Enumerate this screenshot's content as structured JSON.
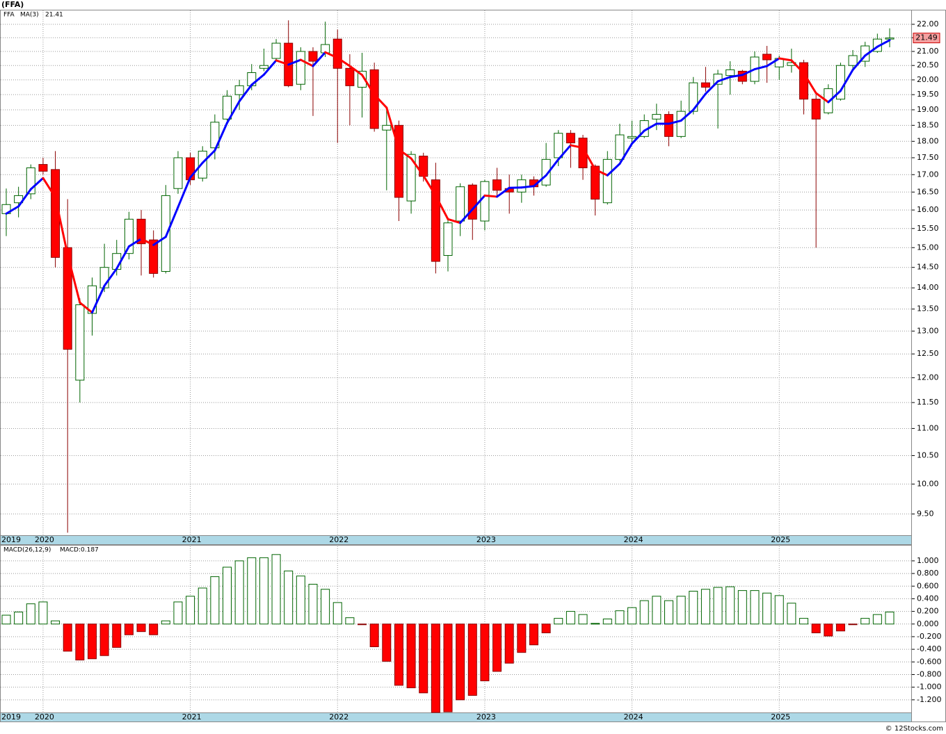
{
  "chart_data": [
    {
      "type": "candlestick",
      "title": "(FFA)",
      "log_scale": true,
      "grid": true,
      "categories": [
        "2019",
        null,
        null,
        "2020",
        null,
        null,
        null,
        null,
        null,
        null,
        null,
        null,
        null,
        null,
        null,
        "2021",
        null,
        null,
        null,
        null,
        null,
        null,
        null,
        null,
        null,
        null,
        null,
        "2022",
        null,
        null,
        null,
        null,
        null,
        null,
        null,
        null,
        null,
        null,
        null,
        "2023",
        null,
        null,
        null,
        null,
        null,
        null,
        null,
        null,
        null,
        null,
        null,
        "2024",
        null,
        null,
        null,
        null,
        null,
        null,
        null,
        null,
        null,
        null,
        null,
        "2025",
        null,
        null,
        null,
        null,
        null,
        null,
        null,
        null,
        null
      ],
      "ylim": [
        9.16,
        22.53
      ],
      "yticks": [
        {
          "value": 9.5,
          "label": "9.50"
        },
        {
          "value": 10,
          "label": "10.00"
        },
        {
          "value": 10.5,
          "label": "10.50"
        },
        {
          "value": 11,
          "label": "11.00"
        },
        {
          "value": 11.5,
          "label": "11.50"
        },
        {
          "value": 12,
          "label": "12.00"
        },
        {
          "value": 12.5,
          "label": "12.50"
        },
        {
          "value": 13,
          "label": "13.00"
        },
        {
          "value": 13.5,
          "label": "13.50"
        },
        {
          "value": 14,
          "label": "14.00"
        },
        {
          "value": 14.5,
          "label": "14.50"
        },
        {
          "value": 15,
          "label": "15.00"
        },
        {
          "value": 15.5,
          "label": "15.50"
        },
        {
          "value": 16,
          "label": "16.00"
        },
        {
          "value": 16.5,
          "label": "16.50"
        },
        {
          "value": 17,
          "label": "17.00"
        },
        {
          "value": 17.5,
          "label": "17.50"
        },
        {
          "value": 18,
          "label": "18.00"
        },
        {
          "value": 18.5,
          "label": "18.50"
        },
        {
          "value": 19,
          "label": "19.00"
        },
        {
          "value": 19.5,
          "label": "19.50"
        },
        {
          "value": 20,
          "label": "20.00"
        },
        {
          "value": 20.5,
          "label": "20.50"
        },
        {
          "value": 21,
          "label": "21.00"
        },
        {
          "value": 21.5,
          "label": "21.50"
        },
        {
          "value": 22,
          "label": "22.00"
        }
      ],
      "series": [
        {
          "name": "FFA",
          "color": "#006400",
          "down_color": "#ff0000",
          "open": [
            15.9,
            16.2,
            16.45,
            17.3,
            17.15,
            15.0,
            11.95,
            13.4,
            14.0,
            14.45,
            14.85,
            15.75,
            15.2,
            14.4,
            16.6,
            17.5,
            16.9,
            17.8,
            18.7,
            19.5,
            19.8,
            20.4,
            20.75,
            21.3,
            19.85,
            21.0,
            20.95,
            21.45,
            20.4,
            19.75,
            20.35,
            18.35,
            18.5,
            16.25,
            17.55,
            16.85,
            14.8,
            15.7,
            16.7,
            15.7,
            16.85,
            16.6,
            16.5,
            16.85,
            16.7,
            17.5,
            18.25,
            18.1,
            17.25,
            16.2,
            17.45,
            18.1,
            18.15,
            18.7,
            18.85,
            18.15,
            18.95,
            19.9,
            19.85,
            20.15,
            20.3,
            19.95,
            20.9,
            20.45,
            20.5,
            20.6,
            19.35,
            18.9,
            19.35,
            20.5,
            20.65,
            21.0,
            21.45
          ],
          "high": [
            16.6,
            16.65,
            17.3,
            17.5,
            17.7,
            16.3,
            13.75,
            14.25,
            15.1,
            15.2,
            15.95,
            16.0,
            15.45,
            16.7,
            17.7,
            17.65,
            17.85,
            18.85,
            19.65,
            20.0,
            20.55,
            21.1,
            21.45,
            22.15,
            21.15,
            21.15,
            22.1,
            21.8,
            20.9,
            20.95,
            20.6,
            19.05,
            18.65,
            17.7,
            17.65,
            17.35,
            15.8,
            16.75,
            16.75,
            16.85,
            17.2,
            17.0,
            17.0,
            16.95,
            17.95,
            18.35,
            18.35,
            18.2,
            17.3,
            17.7,
            18.55,
            18.65,
            18.85,
            19.2,
            18.95,
            19.3,
            20.1,
            20.45,
            20.35,
            20.65,
            20.35,
            21.0,
            21.2,
            20.85,
            21.1,
            20.7,
            19.5,
            19.85,
            20.6,
            21.05,
            21.35,
            21.65,
            21.85
          ],
          "low": [
            15.3,
            15.8,
            16.3,
            17.0,
            14.5,
            9.2,
            11.5,
            12.9,
            13.9,
            14.3,
            14.7,
            14.3,
            14.25,
            14.35,
            16.45,
            16.7,
            16.8,
            17.45,
            18.65,
            19.0,
            19.65,
            20.3,
            20.7,
            19.75,
            19.65,
            18.8,
            20.8,
            17.95,
            18.5,
            18.75,
            18.3,
            16.55,
            15.7,
            15.9,
            16.8,
            14.35,
            14.4,
            15.3,
            15.2,
            15.45,
            16.35,
            15.9,
            16.2,
            16.4,
            16.65,
            17.25,
            17.2,
            16.85,
            15.85,
            16.15,
            17.4,
            17.95,
            18.1,
            18.35,
            17.85,
            18.1,
            18.85,
            19.6,
            18.4,
            19.5,
            19.85,
            19.85,
            19.9,
            20.0,
            20.25,
            18.85,
            15.0,
            18.85,
            19.3,
            20.35,
            20.45,
            20.95,
            21.15
          ],
          "close": [
            16.15,
            16.4,
            17.2,
            17.1,
            14.75,
            12.6,
            13.6,
            14.05,
            14.5,
            14.85,
            15.75,
            15.1,
            14.35,
            16.4,
            17.5,
            16.85,
            17.7,
            18.6,
            19.45,
            19.8,
            20.25,
            20.5,
            21.3,
            19.8,
            21.0,
            20.65,
            21.25,
            20.4,
            19.8,
            20.3,
            18.4,
            18.5,
            16.35,
            17.6,
            16.95,
            14.65,
            15.65,
            16.65,
            15.75,
            16.8,
            16.55,
            16.5,
            16.85,
            16.65,
            17.45,
            18.25,
            17.95,
            17.2,
            16.3,
            17.45,
            18.2,
            18.15,
            18.65,
            18.85,
            18.15,
            18.95,
            19.9,
            19.75,
            20.2,
            20.35,
            19.95,
            20.8,
            20.7,
            20.75,
            20.6,
            19.35,
            18.7,
            19.7,
            20.5,
            20.85,
            21.2,
            21.45,
            21.49
          ]
        },
        {
          "name": "MA(3)",
          "color": "#0000ff",
          "down_color": "#ff0000",
          "values": [
            15.9,
            16.1,
            16.58,
            16.9,
            16.35,
            14.82,
            13.65,
            13.42,
            14.05,
            14.47,
            15.03,
            15.23,
            15.07,
            15.28,
            16.08,
            16.92,
            17.35,
            17.72,
            18.58,
            19.28,
            19.83,
            20.18,
            20.68,
            20.53,
            20.7,
            20.48,
            20.97,
            20.77,
            20.48,
            20.17,
            19.5,
            19.07,
            17.75,
            17.48,
            16.97,
            16.4,
            15.75,
            15.65,
            16.02,
            16.4,
            16.37,
            16.62,
            16.63,
            16.67,
            16.98,
            17.45,
            17.88,
            17.8,
            17.15,
            16.98,
            17.32,
            17.93,
            18.33,
            18.55,
            18.55,
            18.65,
            19.0,
            19.53,
            19.95,
            20.1,
            20.17,
            20.37,
            20.48,
            20.75,
            20.68,
            20.23,
            19.55,
            19.25,
            19.63,
            20.35,
            20.85,
            21.17,
            21.41
          ]
        }
      ]
    },
    {
      "type": "bar",
      "title": "MACD(26,12,9)",
      "label": "MACD:0.187",
      "grid": true,
      "color": "#006400",
      "down_color": "#ff0000",
      "categories": [
        "2019",
        null,
        null,
        "2020",
        null,
        null,
        null,
        null,
        null,
        null,
        null,
        null,
        null,
        null,
        null,
        "2021",
        null,
        null,
        null,
        null,
        null,
        null,
        null,
        null,
        null,
        null,
        null,
        "2022",
        null,
        null,
        null,
        null,
        null,
        null,
        null,
        null,
        null,
        null,
        null,
        "2023",
        null,
        null,
        null,
        null,
        null,
        null,
        null,
        null,
        null,
        null,
        null,
        "2024",
        null,
        null,
        null,
        null,
        null,
        null,
        null,
        null,
        null,
        null,
        null,
        "2025",
        null,
        null,
        null,
        null,
        null,
        null,
        null,
        null,
        null
      ],
      "values": [
        0.14,
        0.19,
        0.32,
        0.35,
        0.05,
        -0.43,
        -0.57,
        -0.55,
        -0.5,
        -0.37,
        -0.17,
        -0.12,
        -0.17,
        0.05,
        0.35,
        0.44,
        0.57,
        0.75,
        0.9,
        1.0,
        1.05,
        1.05,
        1.1,
        0.84,
        0.76,
        0.63,
        0.55,
        0.34,
        0.1,
        -0.01,
        -0.36,
        -0.59,
        -0.97,
        -1.01,
        -1.09,
        -1.4,
        -1.39,
        -1.2,
        -1.13,
        -0.9,
        -0.75,
        -0.62,
        -0.45,
        -0.33,
        -0.14,
        0.09,
        0.2,
        0.15,
        0.01,
        0.08,
        0.21,
        0.26,
        0.37,
        0.44,
        0.37,
        0.44,
        0.52,
        0.55,
        0.58,
        0.59,
        0.53,
        0.53,
        0.49,
        0.45,
        0.33,
        0.09,
        -0.14,
        -0.19,
        -0.11,
        -0.01,
        0.09,
        0.15,
        0.19
      ],
      "ylim": [
        -1.4,
        1.23
      ],
      "yticks": [
        {
          "value": -1.2,
          "label": "-1.200"
        },
        {
          "value": -1.0,
          "label": "-1.000"
        },
        {
          "value": -0.8,
          "label": "-0.800"
        },
        {
          "value": -0.6,
          "label": "-0.600"
        },
        {
          "value": -0.4,
          "label": "-0.400"
        },
        {
          "value": -0.2,
          "label": "-0.200"
        },
        {
          "value": 0,
          "label": "0.000"
        },
        {
          "value": 0.2,
          "label": "0.200"
        },
        {
          "value": 0.4,
          "label": "0.400"
        },
        {
          "value": 0.6,
          "label": "0.600"
        },
        {
          "value": 0.8,
          "label": "0.800"
        },
        {
          "value": 1.0,
          "label": "1.000"
        }
      ]
    }
  ],
  "footer": "© 12Stocks.com"
}
